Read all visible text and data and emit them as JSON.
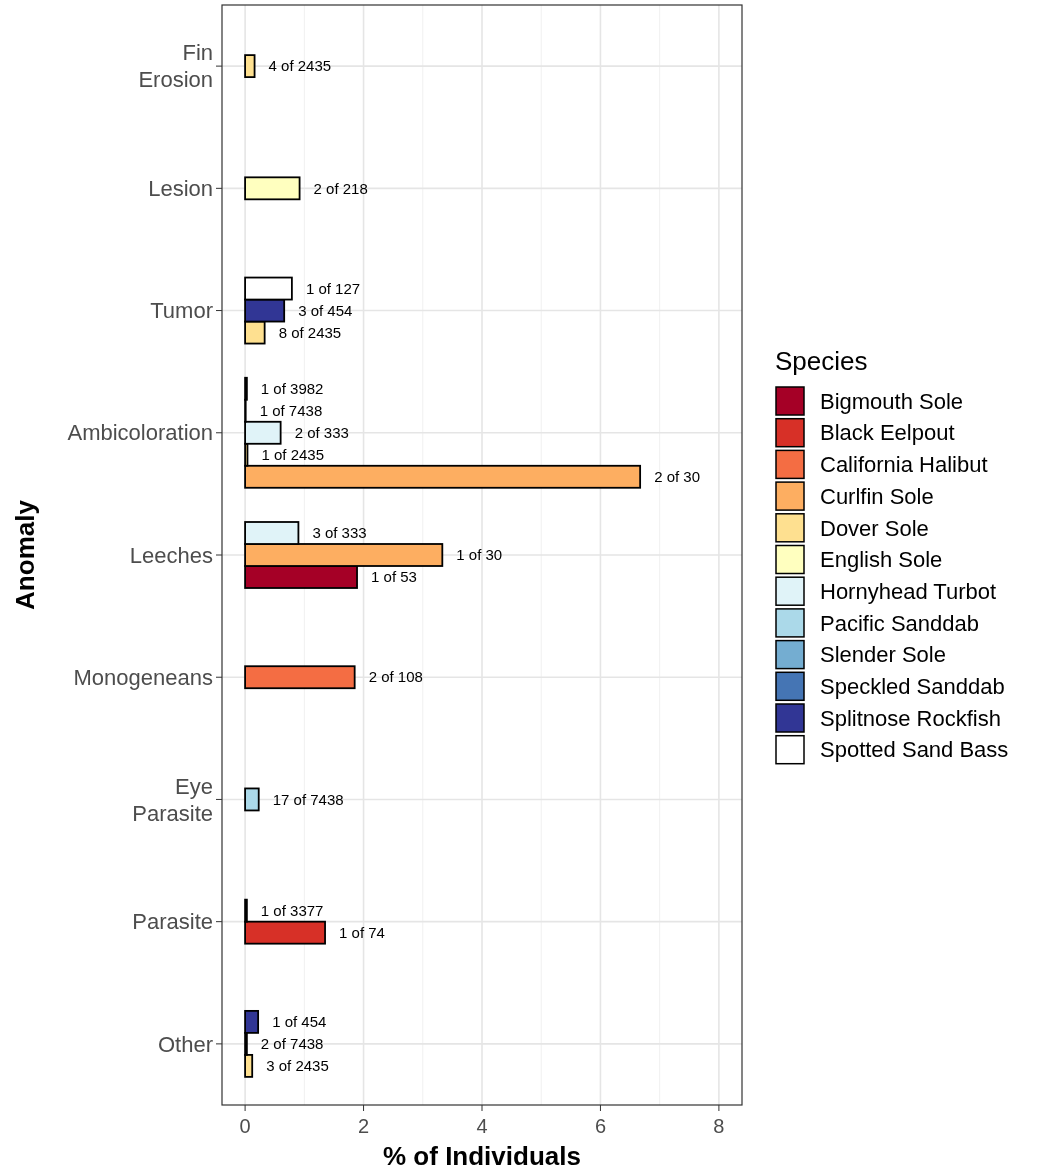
{
  "chart_data": {
    "type": "bar",
    "orientation": "horizontal",
    "xlabel": "% of Individuals",
    "ylabel": "Anomaly",
    "legend_title": "Species",
    "legend": "right",
    "grid": true,
    "categories": [
      "Fin\nErosion",
      "Lesion",
      "Tumor",
      "Ambicoloration",
      "Leeches",
      "Monogeneans",
      "Eye\nParasite",
      "Parasite",
      "Other"
    ],
    "xlim": [
      -0.39,
      8.39
    ],
    "xticks": [
      0,
      2,
      4,
      6,
      8
    ],
    "series": [
      {
        "name": "Bigmouth Sole",
        "color": "#a50026",
        "values": [
          null,
          null,
          null,
          null,
          1.89,
          null,
          null,
          null,
          null
        ]
      },
      {
        "name": "Black Eelpout",
        "color": "#d73027",
        "values": [
          null,
          null,
          null,
          null,
          null,
          null,
          null,
          1.35,
          null
        ]
      },
      {
        "name": "California Halibut",
        "color": "#f46d43",
        "values": [
          null,
          null,
          null,
          null,
          null,
          1.85,
          null,
          null,
          null
        ]
      },
      {
        "name": "Curlfin Sole",
        "color": "#fdae61",
        "values": [
          null,
          null,
          null,
          6.67,
          3.33,
          null,
          null,
          null,
          null
        ]
      },
      {
        "name": "Dover Sole",
        "color": "#fee090",
        "values": [
          0.16,
          null,
          0.33,
          0.04,
          null,
          null,
          null,
          null,
          0.12
        ]
      },
      {
        "name": "English Sole",
        "color": "#ffffbf",
        "values": [
          null,
          0.92,
          null,
          null,
          null,
          null,
          null,
          null,
          null
        ]
      },
      {
        "name": "Hornyhead Turbot",
        "color": "#e0f3f8",
        "values": [
          null,
          null,
          null,
          0.6,
          0.9,
          null,
          null,
          null,
          null
        ]
      },
      {
        "name": "Pacific Sanddab",
        "color": "#abd9e9",
        "values": [
          null,
          null,
          null,
          0.01,
          null,
          null,
          0.23,
          null,
          0.03
        ]
      },
      {
        "name": "Slender Sole",
        "color": "#74add1",
        "values": [
          null,
          null,
          null,
          null,
          null,
          null,
          null,
          0.03,
          null
        ]
      },
      {
        "name": "Speckled Sanddab",
        "color": "#4575b4",
        "values": [
          null,
          null,
          null,
          0.03,
          null,
          null,
          null,
          null,
          null
        ]
      },
      {
        "name": "Splitnose Rockfish",
        "color": "#313695",
        "values": [
          null,
          null,
          0.66,
          null,
          null,
          null,
          null,
          null,
          0.22
        ]
      },
      {
        "name": "Spotted Sand Bass",
        "color": "#ffffff",
        "values": [
          null,
          null,
          0.79,
          null,
          null,
          null,
          null,
          null,
          null
        ]
      }
    ],
    "annotations": [
      "4 of 2435",
      "2 of 218",
      "1 of 127",
      "3 of 454",
      "8 of 2435",
      "1 of 3982",
      "1 of 7438",
      "2 of 333",
      "1 of 2435",
      "2 of 30",
      "3 of 333",
      "1 of 30",
      "1 of 53",
      "2 of 108",
      "17 of 7438",
      "1 of 3377",
      "1 of 74",
      "1 of 454",
      "2 of 7438",
      "3 of 2435"
    ]
  }
}
